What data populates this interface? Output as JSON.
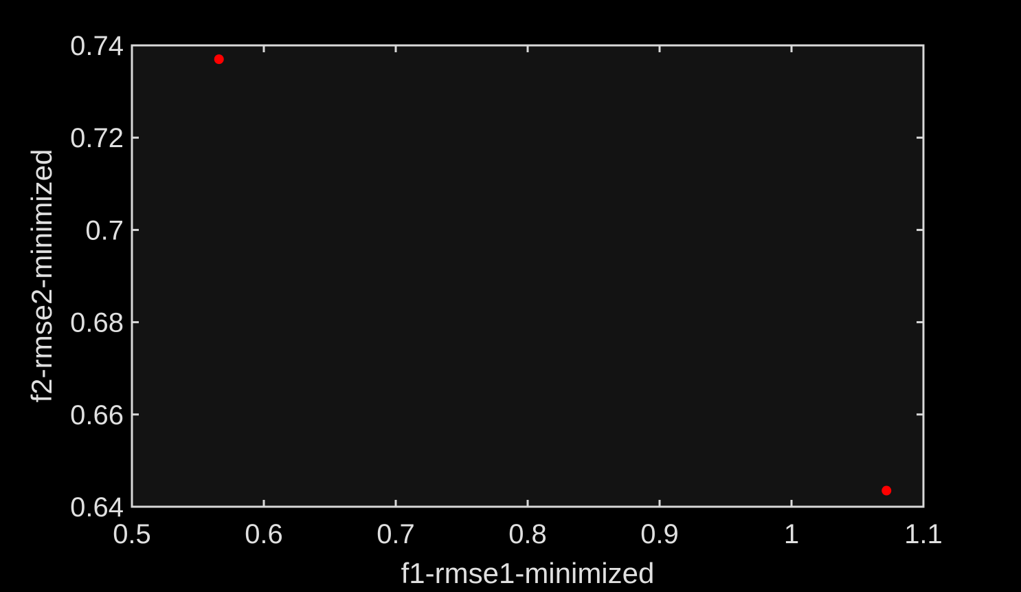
{
  "chart_data": {
    "type": "scatter",
    "title": "",
    "xlabel": "f1-rmse1-minimized",
    "ylabel": "f2-rmse2-minimized",
    "xlim": [
      0.5,
      1.1
    ],
    "ylim": [
      0.64,
      0.74
    ],
    "xticks": [
      "0.5",
      "0.6",
      "0.7",
      "0.8",
      "0.9",
      "1",
      "1.1"
    ],
    "yticks": [
      "0.64",
      "0.66",
      "0.68",
      "0.7",
      "0.72",
      "0.74"
    ],
    "grid": false,
    "series": [
      {
        "x": [
          0.566,
          1.072
        ],
        "y": [
          0.737,
          0.6435
        ],
        "color": "#ff0000",
        "marker": "circle"
      }
    ],
    "colors": {
      "background": "#000000",
      "plot_area": "#131313",
      "axis": "#d9d9d9",
      "text": "#e0e0e0"
    }
  }
}
